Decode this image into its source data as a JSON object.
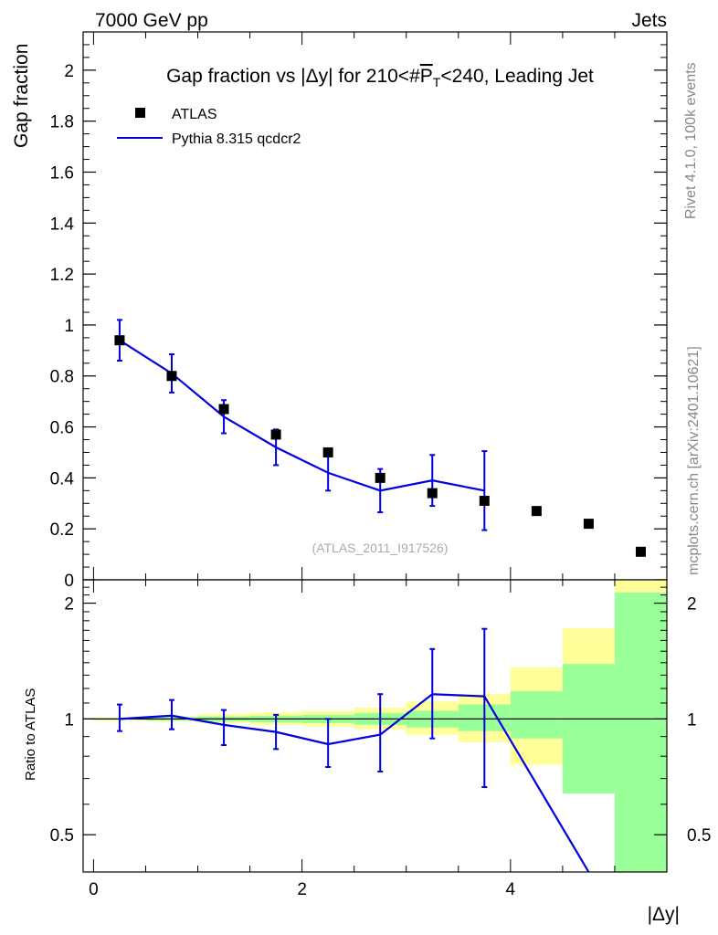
{
  "header": {
    "left": "7000 GeV pp",
    "right": "Jets"
  },
  "side": {
    "rivet": "Rivet 4.1.0,  100k events",
    "mcplots": "mcplots.cern.ch [arXiv:2401.10621]"
  },
  "chart_data": [
    {
      "type": "scatter",
      "title": "Gap fraction vs |Δy| for 210<#P̅T<240, Leading Jet",
      "title_parts": {
        "pre": "Gap fraction vs |Δy| for 210<#",
        "p": "P",
        "sub": "T",
        "post": "<240, Leading Jet"
      },
      "ylabel": "Gap fraction",
      "xlabel": "|Δy|",
      "analysis_tag": "(ATLAS_2011_I917526)",
      "xlim": [
        -0.1,
        5.5
      ],
      "ylim": [
        0,
        2.15
      ],
      "y_ticks": [
        0,
        0.2,
        0.4,
        0.6,
        0.8,
        1,
        1.2,
        1.4,
        1.6,
        1.8,
        2
      ],
      "y_tick_labels": [
        "0",
        "0.2",
        "0.4",
        "0.6",
        "0.8",
        "1",
        "1.2",
        "1.4",
        "1.6",
        "1.8",
        "2"
      ],
      "series": [
        {
          "name": "ATLAS",
          "style": "markers",
          "color": "#000000",
          "x": [
            0.25,
            0.75,
            1.25,
            1.75,
            2.25,
            2.75,
            3.25,
            3.75,
            4.25,
            4.75,
            5.25
          ],
          "values": [
            0.94,
            0.8,
            0.67,
            0.57,
            0.5,
            0.4,
            0.34,
            0.31,
            0.27,
            0.22,
            0.11
          ]
        },
        {
          "name": "Pythia 8.315 qcdcr2",
          "style": "line",
          "color": "#0000e0",
          "x": [
            0.25,
            0.75,
            1.25,
            1.75,
            2.25,
            2.75,
            3.25,
            3.75
          ],
          "values": [
            0.94,
            0.81,
            0.64,
            0.52,
            0.42,
            0.35,
            0.39,
            0.35
          ],
          "err": [
            0.08,
            0.075,
            0.065,
            0.07,
            0.07,
            0.085,
            0.1,
            0.155
          ]
        }
      ]
    },
    {
      "type": "area",
      "ylabel": "Ratio to ATLAS",
      "xlabel": "|Δy|",
      "xlim": [
        -0.1,
        5.5
      ],
      "ylim": [
        0.4,
        2.3
      ],
      "log_y": true,
      "x_ticks": [
        0,
        2,
        4
      ],
      "x_tick_labels": [
        "0",
        "2",
        "4"
      ],
      "y_ticks": [
        0.5,
        1,
        2
      ],
      "y_tick_labels": [
        "0.5",
        "1",
        "2"
      ],
      "reference_line": 1,
      "bands": {
        "edges": [
          0,
          0.5,
          1,
          1.5,
          2,
          2.5,
          3,
          3.5,
          4,
          4.5,
          5,
          5.5
        ],
        "yellow_low": [
          0.99,
          0.985,
          0.975,
          0.965,
          0.955,
          0.94,
          0.91,
          0.87,
          0.76,
          0.72,
          0.4
        ],
        "yellow_high": [
          1.01,
          1.015,
          1.03,
          1.04,
          1.05,
          1.07,
          1.11,
          1.16,
          1.36,
          1.72,
          2.4
        ],
        "green_low": [
          0.995,
          0.99,
          0.985,
          0.98,
          0.975,
          0.965,
          0.95,
          0.93,
          0.89,
          0.64,
          0.4
        ],
        "green_high": [
          1.005,
          1.01,
          1.015,
          1.02,
          1.025,
          1.035,
          1.05,
          1.09,
          1.18,
          1.39,
          2.13
        ]
      },
      "series": [
        {
          "name": "Pythia 8.315 qcdcr2 / ATLAS",
          "color": "#0000e0",
          "x": [
            0.25,
            0.75,
            1.25,
            1.75,
            2.25,
            2.75,
            3.25,
            3.75,
            4.75
          ],
          "values": [
            1.0,
            1.02,
            0.965,
            0.925,
            0.86,
            0.91,
            1.16,
            1.145,
            0.4
          ],
          "err_low": [
            0.07,
            0.08,
            0.11,
            0.09,
            0.11,
            0.18,
            0.27,
            0.48,
            0
          ],
          "err_high": [
            0.09,
            0.1,
            0.09,
            0.1,
            0.14,
            0.25,
            0.36,
            0.57,
            0
          ],
          "has_errbar": [
            true,
            true,
            true,
            true,
            true,
            true,
            true,
            true,
            false
          ]
        }
      ]
    }
  ],
  "colors": {
    "yellow_band": "#ffff99",
    "green_band": "#99ff99",
    "mc_line": "#0000e0",
    "data": "#000000",
    "side_text": "#888888",
    "tag_text": "#aaaaaa"
  }
}
